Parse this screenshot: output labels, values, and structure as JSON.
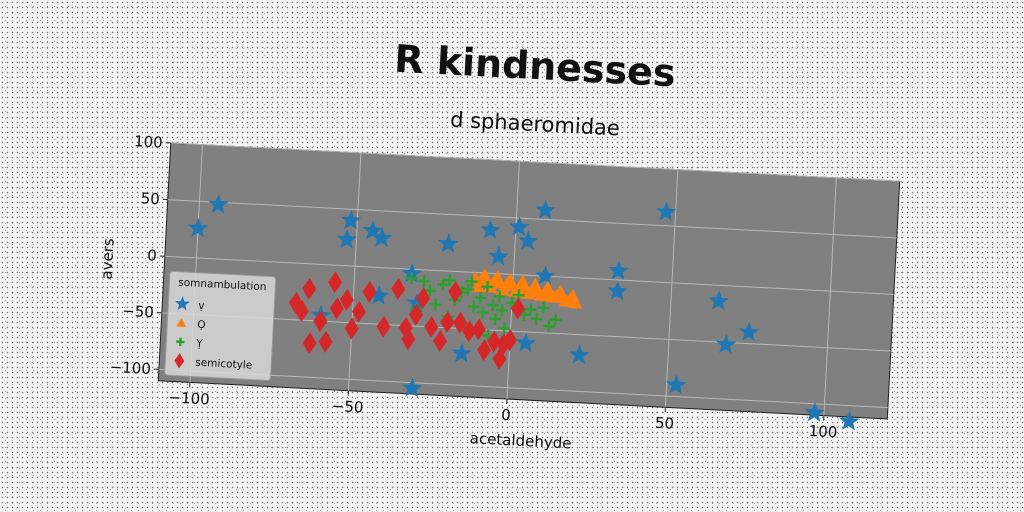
{
  "chart_data": {
    "type": "scatter",
    "title": "R kindnesses",
    "subtitle": "d sphaeromidae",
    "xlabel": "acetaldehyde",
    "ylabel": "avers",
    "xlim": [
      -110,
      120
    ],
    "ylim": [
      -110,
      100
    ],
    "xticks": [
      -100,
      -50,
      0,
      50,
      100
    ],
    "yticks": [
      100,
      50,
      0,
      -50,
      -100
    ],
    "xtick_labels": [
      "−100",
      "−50",
      "0",
      "50",
      "100"
    ],
    "ytick_labels": [
      "100",
      "50",
      "0",
      "−50",
      "−100"
    ],
    "grid": true,
    "plot_background": "#808080",
    "legend": {
      "title": "somnambulation",
      "position": "lower-left"
    },
    "series": [
      {
        "name": "ṿ",
        "marker": "star",
        "color": "#1f77b4",
        "points": [
          [
            -100,
            26
          ],
          [
            -94,
            48
          ],
          [
            -52,
            40
          ],
          [
            -53,
            23
          ],
          [
            -45,
            32
          ],
          [
            -42,
            26
          ],
          [
            -21,
            24
          ],
          [
            -8,
            38
          ],
          [
            1,
            42
          ],
          [
            4,
            30
          ],
          [
            -5,
            15
          ],
          [
            9,
            58
          ],
          [
            -32,
            -4
          ],
          [
            10,
            0
          ],
          [
            -30,
            -30
          ],
          [
            33,
            8
          ],
          [
            33,
            -10
          ],
          [
            47,
            62
          ],
          [
            -42,
            -25
          ],
          [
            -15,
            -72
          ],
          [
            -60,
            -45
          ],
          [
            22,
            -68
          ],
          [
            65,
            -14
          ],
          [
            68,
            -52
          ],
          [
            75,
            -40
          ],
          [
            53,
            -90
          ],
          [
            -30,
            -105
          ],
          [
            97,
            -108
          ],
          [
            108,
            -114
          ],
          [
            5,
            -60
          ]
        ]
      },
      {
        "name": "Ọ",
        "marker": "triangle",
        "color": "#ff7f0e",
        "points": [
          [
            -12,
            -5
          ],
          [
            -10,
            -6
          ],
          [
            -8,
            -7
          ],
          [
            -6,
            -7
          ],
          [
            -4,
            -8
          ],
          [
            -2,
            -9
          ],
          [
            0,
            -10
          ],
          [
            2,
            -11
          ],
          [
            4,
            -12
          ],
          [
            6,
            -13
          ],
          [
            8,
            -14
          ],
          [
            10,
            -15
          ],
          [
            12,
            -16
          ],
          [
            14,
            -17
          ],
          [
            16,
            -18
          ],
          [
            18,
            -20
          ],
          [
            20,
            -22
          ],
          [
            -11,
            -12
          ],
          [
            -7,
            -12
          ],
          [
            -3,
            -14
          ],
          [
            1,
            -15
          ],
          [
            5,
            -16
          ],
          [
            9,
            -17
          ],
          [
            13,
            -18
          ],
          [
            17,
            -21
          ],
          [
            -9,
            -2
          ],
          [
            -5,
            -3
          ],
          [
            -1,
            -5
          ],
          [
            3,
            -6
          ],
          [
            7,
            -8
          ],
          [
            11,
            -10
          ],
          [
            15,
            -13
          ],
          [
            19,
            -16
          ]
        ]
      },
      {
        "name": "Ỵ",
        "marker": "plus",
        "color": "#2ca02c",
        "points": [
          [
            -32,
            -8
          ],
          [
            -28,
            -10
          ],
          [
            -26,
            -18
          ],
          [
            -22,
            -12
          ],
          [
            -20,
            -8
          ],
          [
            -18,
            -25
          ],
          [
            -16,
            -18
          ],
          [
            -14,
            -15
          ],
          [
            -12,
            -30
          ],
          [
            -10,
            -22
          ],
          [
            -9,
            -35
          ],
          [
            -8,
            -12
          ],
          [
            -6,
            -28
          ],
          [
            -5,
            -40
          ],
          [
            -4,
            -20
          ],
          [
            -3,
            -32
          ],
          [
            -2,
            -48
          ],
          [
            0,
            -25
          ],
          [
            2,
            -18
          ],
          [
            4,
            -35
          ],
          [
            6,
            -30
          ],
          [
            8,
            -38
          ],
          [
            10,
            -28
          ],
          [
            12,
            -44
          ],
          [
            14,
            -38
          ],
          [
            -24,
            -30
          ],
          [
            -30,
            -35
          ],
          [
            -20,
            -40
          ],
          [
            -15,
            -45
          ],
          [
            -11,
            -50
          ],
          [
            -7,
            -55
          ],
          [
            -13,
            -8
          ]
        ]
      },
      {
        "name": "semicotyle",
        "marker": "diamond",
        "color": "#d62728",
        "points": [
          [
            -68,
            -35
          ],
          [
            -66,
            -42
          ],
          [
            -64,
            -22
          ],
          [
            -63,
            -70
          ],
          [
            -60,
            -50
          ],
          [
            -58,
            -68
          ],
          [
            -56,
            -15
          ],
          [
            -55,
            -38
          ],
          [
            -52,
            -30
          ],
          [
            -50,
            -55
          ],
          [
            -48,
            -40
          ],
          [
            -45,
            -22
          ],
          [
            -40,
            -52
          ],
          [
            -36,
            -18
          ],
          [
            -33,
            -52
          ],
          [
            -32,
            -62
          ],
          [
            -30,
            -40
          ],
          [
            -28,
            -25
          ],
          [
            -25,
            -50
          ],
          [
            -22,
            -62
          ],
          [
            -20,
            -45
          ],
          [
            -18,
            -18
          ],
          [
            -16,
            -45
          ],
          [
            -13,
            -52
          ],
          [
            -10,
            -50
          ],
          [
            -8,
            -68
          ],
          [
            -5,
            -60
          ],
          [
            -3,
            -75
          ],
          [
            -2,
            -62
          ],
          [
            0,
            -58
          ],
          [
            2,
            -30
          ]
        ]
      }
    ]
  }
}
